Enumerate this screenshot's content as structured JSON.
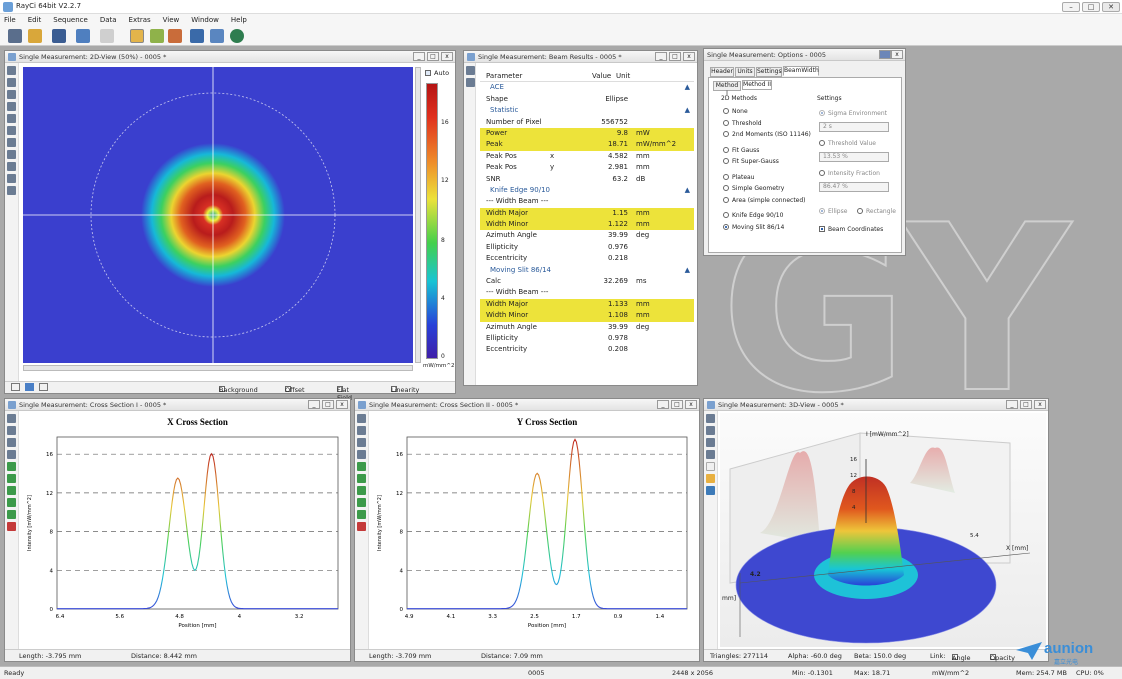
{
  "app": {
    "title": "RayCi 64bit V2.2.7"
  },
  "menu": [
    "File",
    "Edit",
    "Sequence",
    "Data",
    "Extras",
    "View",
    "Window",
    "Help"
  ],
  "watermark": "GY",
  "view2d": {
    "title": "Single Measurement: 2D-View (50%) - 0005 *",
    "auto_label": "Auto",
    "scale_ticks": [
      "16",
      "12",
      "8",
      "4",
      "0"
    ],
    "unit": "mW/mm^2",
    "footer": [
      "Background",
      "Offset",
      "Flat Field",
      "Linearity"
    ]
  },
  "results": {
    "title": "Single Measurement: Beam Results - 0005 *",
    "headers": {
      "param": "Parameter",
      "value": "Value",
      "unit": "Unit"
    },
    "rows": [
      {
        "type": "sec",
        "label": "ACE"
      },
      {
        "type": "row",
        "label": "Shape",
        "axis": "",
        "value": "Ellipse",
        "unit": ""
      },
      {
        "type": "sec",
        "label": "Statistic"
      },
      {
        "type": "row",
        "label": "Number of Pixel",
        "axis": "",
        "value": "556752",
        "unit": ""
      },
      {
        "type": "hl",
        "label": "Power",
        "axis": "",
        "value": "9.8",
        "unit": "mW"
      },
      {
        "type": "hl",
        "label": "Peak",
        "axis": "",
        "value": "18.71",
        "unit": "mW/mm^2"
      },
      {
        "type": "row",
        "label": "Peak Pos",
        "axis": "x",
        "value": "4.582",
        "unit": "mm"
      },
      {
        "type": "row",
        "label": "Peak Pos",
        "axis": "y",
        "value": "2.981",
        "unit": "mm"
      },
      {
        "type": "row",
        "label": "SNR",
        "axis": "",
        "value": "63.2",
        "unit": "dB"
      },
      {
        "type": "sec",
        "label": "Knife Edge 90/10"
      },
      {
        "type": "row",
        "label": "--- Width Beam ---",
        "axis": "",
        "value": "",
        "unit": ""
      },
      {
        "type": "hl",
        "label": "Width Major",
        "axis": "",
        "value": "1.15",
        "unit": "mm"
      },
      {
        "type": "hl",
        "label": "Width Minor",
        "axis": "",
        "value": "1.122",
        "unit": "mm"
      },
      {
        "type": "row",
        "label": "Azimuth Angle",
        "axis": "",
        "value": "39.99",
        "unit": "deg"
      },
      {
        "type": "row",
        "label": "Ellipticity",
        "axis": "",
        "value": "0.976",
        "unit": ""
      },
      {
        "type": "row",
        "label": "Eccentricity",
        "axis": "",
        "value": "0.218",
        "unit": ""
      },
      {
        "type": "sec",
        "label": "Moving Slit 86/14"
      },
      {
        "type": "row",
        "label": "Calc",
        "axis": "",
        "value": "32.269",
        "unit": "ms"
      },
      {
        "type": "row",
        "label": "--- Width Beam ---",
        "axis": "",
        "value": "",
        "unit": ""
      },
      {
        "type": "hl",
        "label": "Width Major",
        "axis": "",
        "value": "1.133",
        "unit": "mm"
      },
      {
        "type": "hl",
        "label": "Width Minor",
        "axis": "",
        "value": "1.108",
        "unit": "mm"
      },
      {
        "type": "row",
        "label": "Azimuth Angle",
        "axis": "",
        "value": "39.99",
        "unit": "deg"
      },
      {
        "type": "row",
        "label": "Ellipticity",
        "axis": "",
        "value": "0.978",
        "unit": ""
      },
      {
        "type": "row",
        "label": "Eccentricity",
        "axis": "",
        "value": "0.208",
        "unit": ""
      }
    ]
  },
  "options": {
    "title": "Single Measurement: Options - 0005",
    "tabs": [
      "Header",
      "Units",
      "Settings",
      "BeamWidth"
    ],
    "subtabs": [
      "Method I",
      "Method II"
    ],
    "methods_label": "2D Methods",
    "settings_label": "Settings",
    "methods": [
      "None",
      "Threshold",
      "2nd Moments (ISO 11146)",
      "Fit Gauss",
      "Fit Super-Gauss",
      "Plateau",
      "Simple Geometry",
      "Area (simple connected)",
      "Knife Edge 90/10",
      "Moving Slit 86/14"
    ],
    "sigma_env": "Sigma Environment",
    "sigma_val": "2 s",
    "thresh_label": "Threshold Value",
    "thresh_val": "13.53 %",
    "intensity_label": "Intensity Fraction",
    "intensity_val": "86.47 %",
    "ellipse": "Ellipse",
    "rectangle": "Rectangle",
    "beam_coords": "Beam Coordinates"
  },
  "cross1": {
    "title": "Single Measurement: Cross Section I - 0005 *",
    "chart_title": "X Cross Section",
    "ylabel": "Intensity [mW/mm^2]",
    "xlabel": "Position [mm]",
    "yticks": [
      "16",
      "12",
      "8",
      "4",
      "0"
    ],
    "xticks": [
      "6.4",
      "5.6",
      "4.8",
      "4",
      "3.2"
    ],
    "footer_length": "Length: -3.795 mm",
    "footer_distance": "Distance: 8.442 mm"
  },
  "cross2": {
    "title": "Single Measurement: Cross Section II - 0005 *",
    "chart_title": "Y Cross Section",
    "ylabel": "Intensity [mW/mm^2]",
    "xlabel": "Position [mm]",
    "yticks": [
      "16",
      "12",
      "8",
      "4",
      "0"
    ],
    "xticks": [
      "4.9",
      "4.1",
      "3.3",
      "2.5",
      "1.7",
      "0.9",
      "1.4"
    ],
    "footer_length": "Length: -3.709 mm",
    "footer_distance": "Distance: 7.09 mm"
  },
  "view3d": {
    "title": "Single Measurement: 3D-View - 0005 *",
    "zlabel": "I [mW/mm^2]",
    "zticks": [
      "16",
      "12",
      "8",
      "4"
    ],
    "xlabel": "X [mm]",
    "tick_54": "5.4",
    "tick_42": "4.2",
    "mm_label": "mm]",
    "triangles": "Triangles: 277114",
    "alpha": "Alpha: -60.0 deg",
    "beta": "Beta: 150.0 deg",
    "link": "Link:",
    "angle": "Angle",
    "opacity": "Opacity"
  },
  "status": {
    "ready": "Ready",
    "frame": "0005",
    "res": "2448 x 2056",
    "min": "Min: -0.1301",
    "max": "Max: 18.71",
    "unit": "mW/mm^2",
    "mem": "Mem: 254.7 MB",
    "cpu": "CPU: 0%"
  },
  "logo": {
    "text": "aunion",
    "sub": "嘉立光电"
  }
}
